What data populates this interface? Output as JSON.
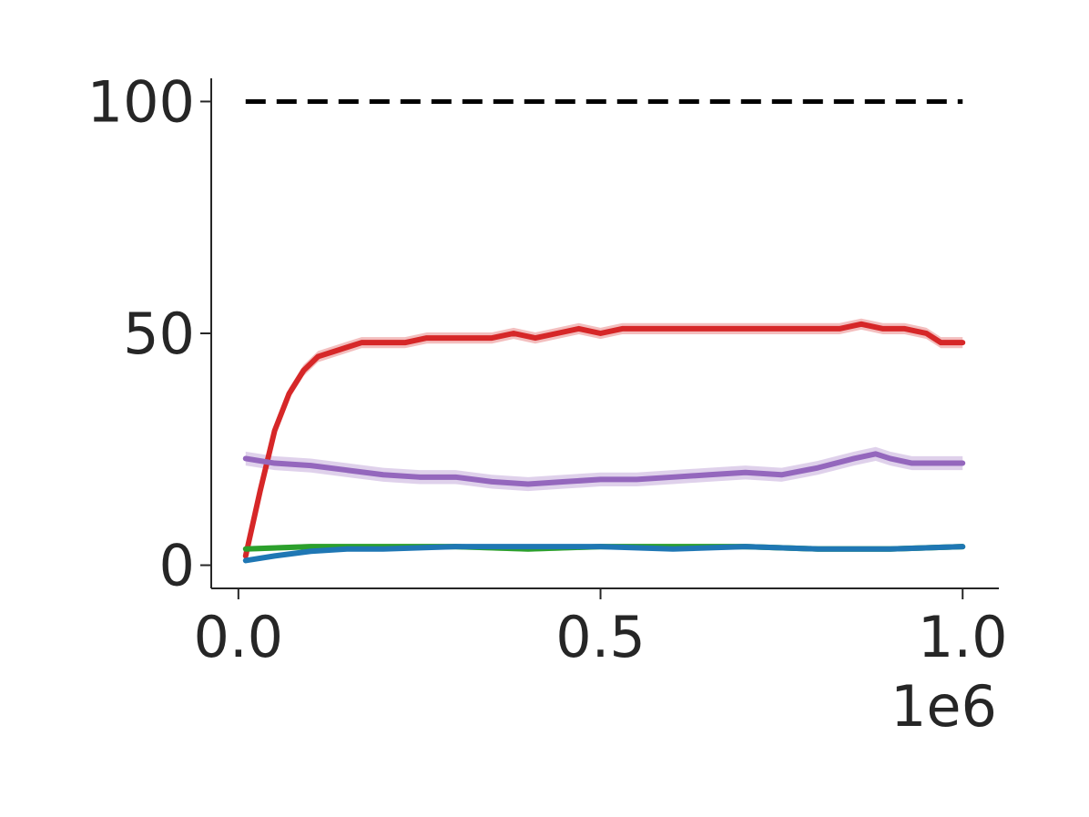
{
  "chart_data": {
    "type": "line",
    "title": "",
    "xlabel": "",
    "ylabel": "",
    "x_offset_label": "1e6",
    "xlim": [
      -0.0375,
      1.05
    ],
    "ylim": [
      -5,
      105
    ],
    "xticks": [
      0.0,
      0.5,
      1.0
    ],
    "xtick_labels": [
      "0.0",
      "0.5",
      "1.0"
    ],
    "yticks": [
      0,
      50,
      100
    ],
    "ytick_labels": [
      "0",
      "50",
      "100"
    ],
    "grid": false,
    "legend": "none",
    "reference_line": {
      "y": 100,
      "x_range": [
        0.01,
        1.0
      ],
      "style": "dashed",
      "color": "#000000"
    },
    "series": [
      {
        "color": "#d62728",
        "band": 1.2,
        "x": [
          0.01,
          0.03,
          0.05,
          0.07,
          0.09,
          0.11,
          0.13,
          0.15,
          0.17,
          0.2,
          0.23,
          0.26,
          0.29,
          0.32,
          0.35,
          0.38,
          0.41,
          0.44,
          0.47,
          0.5,
          0.53,
          0.56,
          0.59,
          0.62,
          0.65,
          0.68,
          0.71,
          0.74,
          0.77,
          0.8,
          0.83,
          0.86,
          0.89,
          0.92,
          0.95,
          0.97,
          1.0
        ],
        "values": [
          2,
          16,
          29,
          37,
          42,
          45,
          46,
          47,
          48,
          48,
          48,
          49,
          49,
          49,
          49,
          50,
          49,
          50,
          51,
          50,
          51,
          51,
          51,
          51,
          51,
          51,
          51,
          51,
          51,
          51,
          51,
          52,
          51,
          51,
          50,
          48,
          48
        ]
      },
      {
        "color": "#9467bd",
        "band": 1.5,
        "x": [
          0.01,
          0.05,
          0.1,
          0.15,
          0.2,
          0.25,
          0.3,
          0.35,
          0.4,
          0.45,
          0.5,
          0.55,
          0.6,
          0.65,
          0.7,
          0.75,
          0.8,
          0.85,
          0.88,
          0.9,
          0.93,
          0.96,
          1.0
        ],
        "values": [
          23,
          22,
          21.5,
          20.5,
          19.5,
          19,
          19,
          18,
          17.5,
          18,
          18.5,
          18.5,
          19,
          19.5,
          20,
          19.5,
          21,
          23,
          24,
          23,
          22,
          22,
          22
        ]
      },
      {
        "color": "#2ca02c",
        "band": 0.6,
        "x": [
          0.01,
          0.1,
          0.2,
          0.3,
          0.4,
          0.5,
          0.6,
          0.7,
          0.8,
          0.9,
          1.0
        ],
        "values": [
          3.5,
          4,
          4,
          4,
          3.5,
          4,
          4,
          4,
          3.5,
          3.5,
          4
        ]
      },
      {
        "color": "#1f77b4",
        "band": 0.5,
        "x": [
          0.01,
          0.05,
          0.1,
          0.15,
          0.2,
          0.3,
          0.4,
          0.5,
          0.6,
          0.7,
          0.8,
          0.9,
          1.0
        ],
        "values": [
          1,
          2,
          3,
          3.5,
          3.5,
          4,
          4,
          4,
          3.5,
          4,
          3.5,
          3.5,
          4
        ]
      }
    ]
  }
}
